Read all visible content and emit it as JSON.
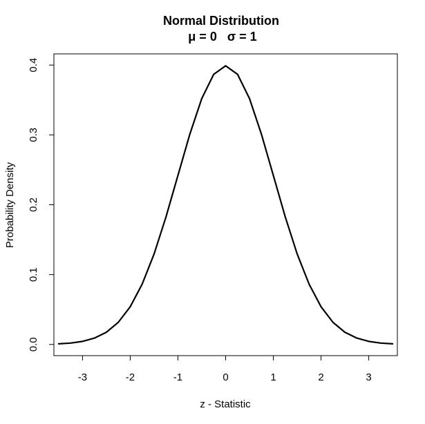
{
  "chart_data": {
    "type": "line",
    "title": "Normal Distribution",
    "subtitle": "μ = 0   σ = 1",
    "xlabel": "z - Statistic",
    "ylabel": "Probability Density",
    "xlim": [
      -3.6,
      3.6
    ],
    "ylim": [
      -0.016,
      0.416
    ],
    "x_ticks": [
      -3,
      -2,
      -1,
      0,
      1,
      2,
      3
    ],
    "x_tick_labels": [
      "-3",
      "-2",
      "-1",
      "0",
      "1",
      "2",
      "3"
    ],
    "y_ticks": [
      0.0,
      0.1,
      0.2,
      0.3,
      0.4
    ],
    "y_tick_labels": [
      "0.0",
      "0.1",
      "0.2",
      "0.3",
      "0.4"
    ],
    "grid": false,
    "series": [
      {
        "color": "#000000",
        "x": [
          -3.5,
          -3.25,
          -3.0,
          -2.75,
          -2.5,
          -2.25,
          -2.0,
          -1.75,
          -1.5,
          -1.25,
          -1.0,
          -0.75,
          -0.5,
          -0.25,
          0.0,
          0.25,
          0.5,
          0.75,
          1.0,
          1.25,
          1.5,
          1.75,
          2.0,
          2.25,
          2.5,
          2.75,
          3.0,
          3.25,
          3.5
        ],
        "y": [
          0.0009,
          0.002,
          0.0044,
          0.0091,
          0.0175,
          0.0317,
          0.054,
          0.0863,
          0.1295,
          0.1826,
          0.242,
          0.3011,
          0.3521,
          0.3867,
          0.3989,
          0.3867,
          0.3521,
          0.3011,
          0.242,
          0.1826,
          0.1295,
          0.0863,
          0.054,
          0.0317,
          0.0175,
          0.0091,
          0.0044,
          0.002,
          0.0009
        ]
      }
    ]
  }
}
